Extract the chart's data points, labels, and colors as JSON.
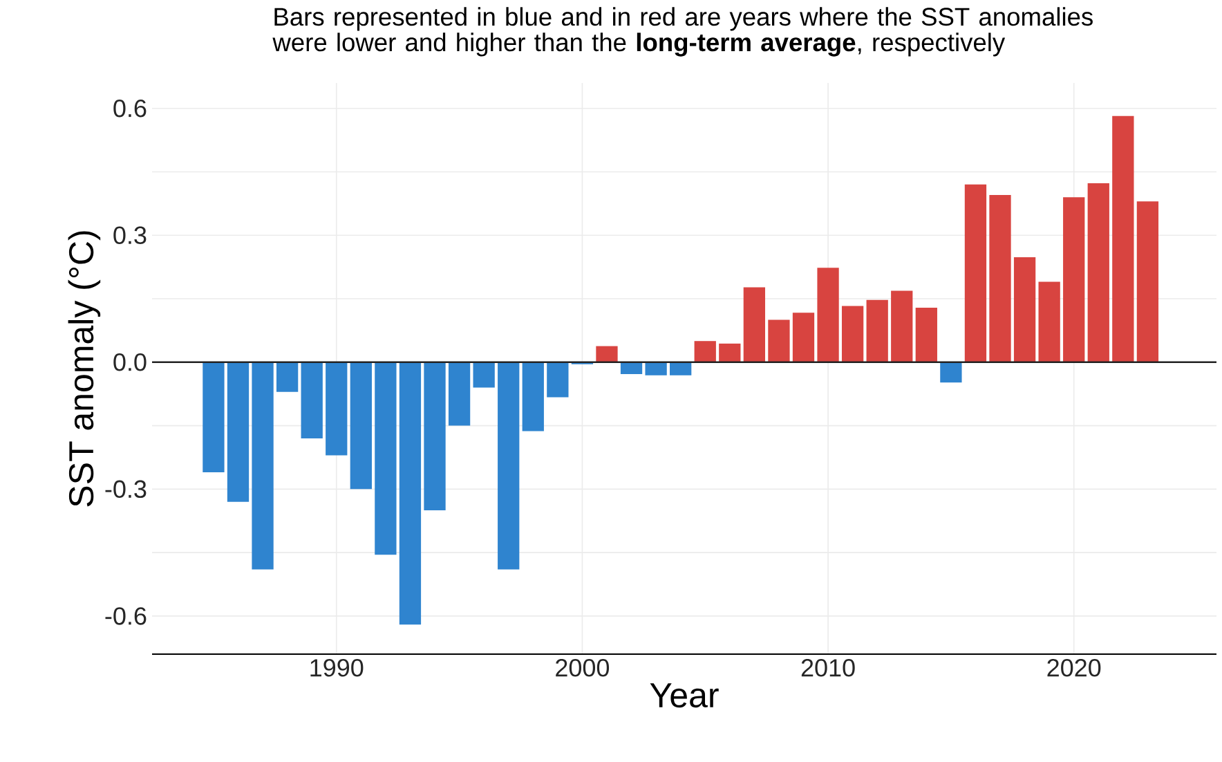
{
  "chart_data": {
    "type": "bar",
    "title": "Bars represented in blue and in red are years where the SST anomalies were lower and higher than the **long-term average**, respectively",
    "xlabel": "Year",
    "ylabel": "SST anomaly (°C)",
    "x": [
      1985,
      1986,
      1987,
      1988,
      1989,
      1990,
      1991,
      1992,
      1993,
      1994,
      1995,
      1996,
      1997,
      1998,
      1999,
      2000,
      2001,
      2002,
      2003,
      2004,
      2005,
      2006,
      2007,
      2008,
      2009,
      2010,
      2011,
      2012,
      2013,
      2014,
      2015,
      2016,
      2017,
      2018,
      2019,
      2020,
      2021,
      2022,
      2023
    ],
    "values": [
      -0.26,
      -0.33,
      -0.49,
      -0.07,
      -0.18,
      -0.22,
      -0.3,
      -0.455,
      -0.62,
      -0.35,
      -0.15,
      -0.06,
      -0.49,
      -0.163,
      -0.083,
      -0.005,
      0.038,
      -0.028,
      -0.031,
      -0.031,
      0.05,
      0.044,
      0.177,
      0.1,
      0.117,
      0.223,
      0.133,
      0.147,
      0.169,
      0.129,
      -0.048,
      0.42,
      0.395,
      0.248,
      0.19,
      0.39,
      0.423,
      0.582,
      0.38
    ],
    "colors": [
      "#2f84cf",
      "#2f84cf",
      "#2f84cf",
      "#2f84cf",
      "#2f84cf",
      "#2f84cf",
      "#2f84cf",
      "#2f84cf",
      "#2f84cf",
      "#2f84cf",
      "#2f84cf",
      "#2f84cf",
      "#2f84cf",
      "#2f84cf",
      "#2f84cf",
      "#2f84cf",
      "#d84440",
      "#2f84cf",
      "#2f84cf",
      "#2f84cf",
      "#d84440",
      "#d84440",
      "#d84440",
      "#d84440",
      "#d84440",
      "#d84440",
      "#d84440",
      "#d84440",
      "#d84440",
      "#d84440",
      "#2f84cf",
      "#d84440",
      "#d84440",
      "#d84440",
      "#d84440",
      "#d84440",
      "#d84440",
      "#d84440",
      "#d84440"
    ],
    "xlim": [
      1982.5,
      2025.8
    ],
    "ylim": [
      -0.69,
      0.66
    ],
    "xticks": [
      1990,
      2000,
      2010,
      2020
    ],
    "yticks": [
      {
        "value": -0.6,
        "label": "-0.6"
      },
      {
        "value": -0.45,
        "label": null
      },
      {
        "value": -0.3,
        "label": "-0.3"
      },
      {
        "value": -0.15,
        "label": null
      },
      {
        "value": 0,
        "label": "0.0"
      },
      {
        "value": 0.15,
        "label": null
      },
      {
        "value": 0.3,
        "label": "0.3"
      },
      {
        "value": 0.45,
        "label": null
      },
      {
        "value": 0.6,
        "label": "0.6"
      }
    ],
    "ref_lines": [
      {
        "axis": "y",
        "value": 0,
        "color": "#222222"
      }
    ],
    "grid": true
  }
}
